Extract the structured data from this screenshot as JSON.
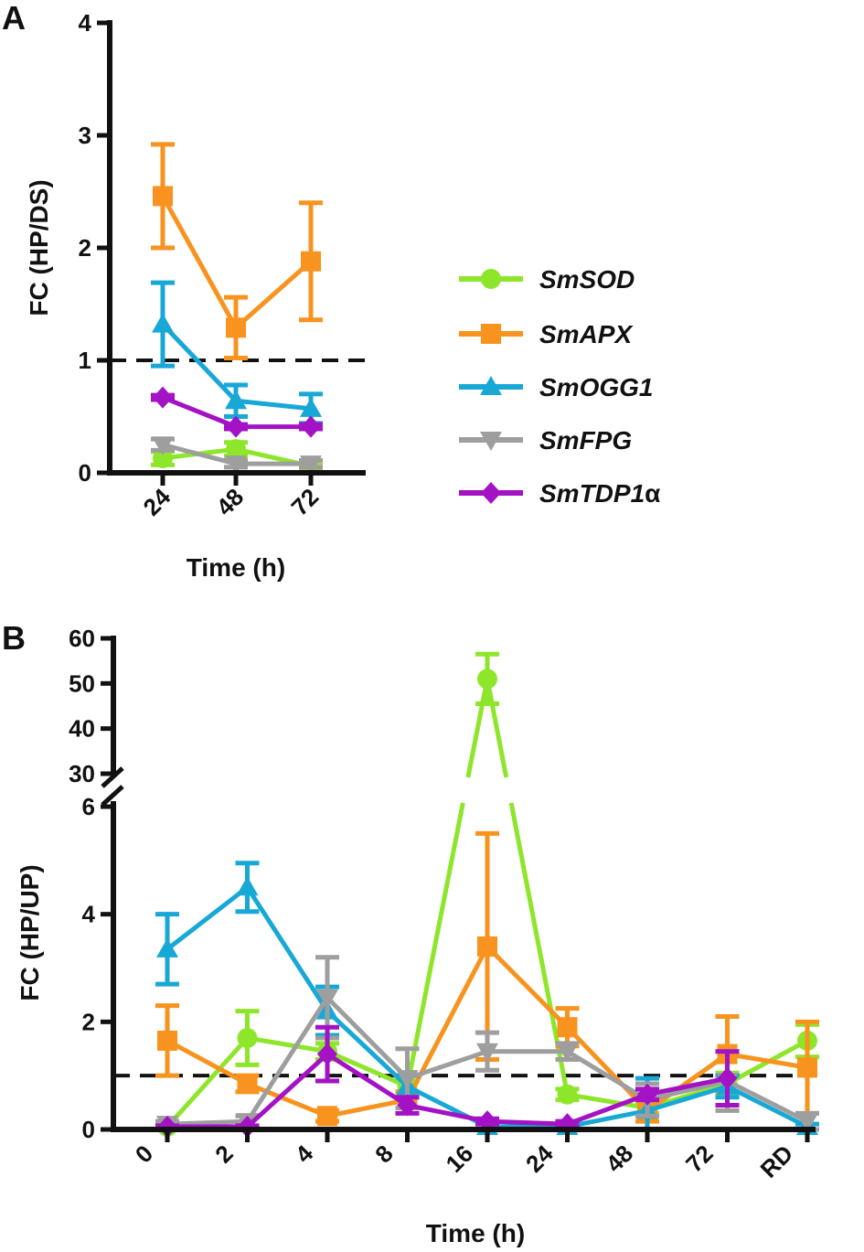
{
  "chart_data": [
    {
      "type": "line",
      "panel": "A",
      "xlabel": "Time (h)",
      "ylabel": "FC (HP/DS)",
      "ylim": [
        0,
        4
      ],
      "yticks": [
        "0",
        "1",
        "2",
        "3",
        "4"
      ],
      "categories": [
        "24",
        "48",
        "72"
      ],
      "reference_line": 1,
      "series": [
        {
          "name": "SmSOD",
          "color": "#8ee62a",
          "marker": "circle",
          "values": [
            0.13,
            0.21,
            0.06
          ],
          "err": [
            0.06,
            0.06,
            0.03
          ]
        },
        {
          "name": "SmAPX",
          "color": "#f7931e",
          "marker": "square",
          "values": [
            2.46,
            1.29,
            1.88
          ],
          "err": [
            0.46,
            0.27,
            0.52
          ]
        },
        {
          "name": "SmOGG1",
          "color": "#18a8d6",
          "marker": "triangle-up",
          "values": [
            1.32,
            0.64,
            0.57
          ],
          "err": [
            0.37,
            0.14,
            0.13
          ]
        },
        {
          "name": "SmFPG",
          "color": "#9e9e9e",
          "marker": "triangle-down",
          "values": [
            0.25,
            0.08,
            0.08
          ],
          "err": [
            0.05,
            0.03,
            0.03
          ]
        },
        {
          "name": "SmTDP1",
          "name_suffix": "α",
          "color": "#a312c4",
          "marker": "diamond",
          "values": [
            0.67,
            0.41,
            0.41
          ],
          "err": [
            0.02,
            0.02,
            0.02
          ]
        }
      ]
    },
    {
      "type": "line",
      "panel": "B",
      "xlabel": "Time (h)",
      "ylabel": "FC (HP/UP)",
      "broken_axis": {
        "lower": [
          0,
          6
        ],
        "upper": [
          30,
          60
        ]
      },
      "yticks_lower": [
        "0",
        "2",
        "4",
        "6"
      ],
      "yticks_upper": [
        "30",
        "40",
        "50",
        "60"
      ],
      "categories": [
        "0",
        "2",
        "4",
        "8",
        "16",
        "24",
        "48",
        "72",
        "RD"
      ],
      "reference_line": 1,
      "series": [
        {
          "name": "SmSOD",
          "color": "#8ee62a",
          "marker": "circle",
          "values": [
            0.05,
            1.7,
            1.45,
            0.8,
            51,
            0.65,
            0.4,
            0.85,
            1.65
          ],
          "err": [
            0.05,
            0.5,
            0.15,
            0.1,
            5.5,
            0.1,
            0.1,
            0.2,
            0.3
          ]
        },
        {
          "name": "SmAPX",
          "color": "#f7931e",
          "marker": "square",
          "values": [
            1.65,
            0.85,
            0.25,
            0.55,
            3.4,
            1.9,
            0.35,
            1.4,
            1.15
          ],
          "err": [
            0.65,
            0.15,
            0.1,
            0.15,
            2.1,
            0.35,
            0.2,
            0.7,
            0.85
          ]
        },
        {
          "name": "SmOGG1",
          "color": "#18a8d6",
          "marker": "triangle-up",
          "values": [
            3.35,
            4.5,
            2.2,
            0.8,
            0.05,
            0.05,
            0.35,
            0.8,
            0.05
          ],
          "err": [
            0.65,
            0.45,
            0.45,
            0.2,
            0.05,
            0.05,
            0.6,
            0.2,
            0.05
          ]
        },
        {
          "name": "SmFPG",
          "color": "#9e9e9e",
          "marker": "triangle-down",
          "values": [
            0.1,
            0.15,
            2.45,
            0.95,
            1.45,
            1.45,
            0.55,
            0.9,
            0.15
          ],
          "err": [
            0.05,
            0.1,
            0.75,
            0.55,
            0.35,
            0.15,
            0.3,
            0.55,
            0.15
          ]
        },
        {
          "name": "SmTDP1",
          "name_suffix": "α",
          "color": "#a312c4",
          "marker": "diamond",
          "values": [
            0.05,
            0.05,
            1.4,
            0.45,
            0.15,
            0.1,
            0.65,
            0.95,
            null
          ],
          "err": [
            0.02,
            0.02,
            0.5,
            0.15,
            0.05,
            0.05,
            0.1,
            0.5,
            0
          ]
        }
      ]
    }
  ]
}
